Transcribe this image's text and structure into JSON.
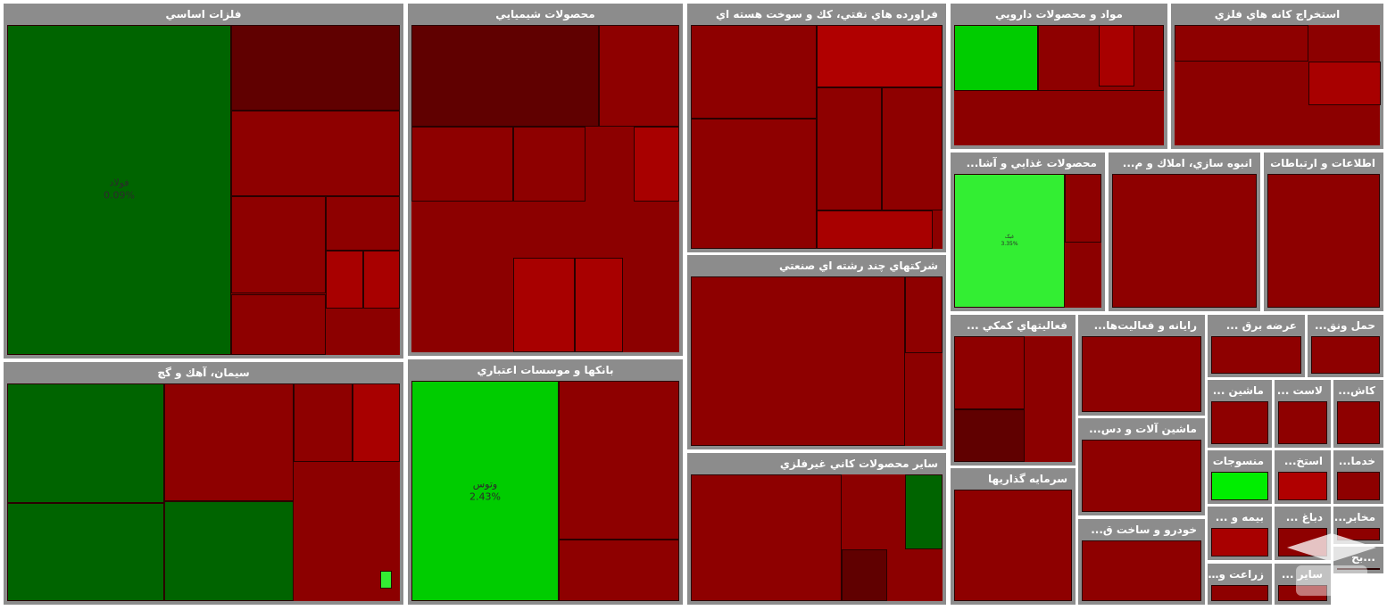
{
  "chart_data": {
    "type": "treemap",
    "title": "",
    "sectors": [
      {
        "name": "فلزات اساسي",
        "label": "فلزات اساسي",
        "tiles": [
          {
            "name": "فولاد",
            "value": "0.09%",
            "color": "#006400"
          },
          {
            "name": "",
            "value": "",
            "color": "#600000"
          },
          {
            "name": "",
            "value": "",
            "color": "#8e0000"
          },
          {
            "name": "",
            "value": "",
            "color": "#8e0000"
          },
          {
            "name": "",
            "value": "",
            "color": "#8e0000"
          },
          {
            "name": "",
            "value": "",
            "color": "#8e0000"
          },
          {
            "name": "",
            "value": "",
            "color": "#a80000"
          },
          {
            "name": "",
            "value": "",
            "color": "#a80000"
          }
        ]
      },
      {
        "name": "سيمان، آهك و گچ",
        "label": "سيمان، آهك و گچ",
        "tiles": [
          {
            "name": "",
            "value": "",
            "color": "#006400"
          },
          {
            "name": "",
            "value": "",
            "color": "#006400"
          },
          {
            "name": "",
            "value": "",
            "color": "#006400"
          },
          {
            "name": "",
            "value": "",
            "color": "#8e0000"
          },
          {
            "name": "",
            "value": "",
            "color": "#8e0000"
          },
          {
            "name": "",
            "value": "",
            "color": "#a80000"
          },
          {
            "name": "",
            "value": "",
            "color": "#33ee33"
          }
        ]
      },
      {
        "name": "محصولات شيميايي",
        "label": "محصولات شيميايي",
        "tiles": [
          {
            "name": "",
            "value": "",
            "color": "#600000"
          },
          {
            "name": "",
            "value": "",
            "color": "#8e0000"
          },
          {
            "name": "",
            "value": "",
            "color": "#8e0000"
          },
          {
            "name": "",
            "value": "",
            "color": "#8e0000"
          },
          {
            "name": "",
            "value": "",
            "color": "#a80000"
          },
          {
            "name": "",
            "value": "",
            "color": "#a80000"
          },
          {
            "name": "",
            "value": "",
            "color": "#a80000"
          }
        ]
      },
      {
        "name": "بانكها و موسسات اعتباري",
        "label": "بانكها و موسسات اعتباري",
        "tiles": [
          {
            "name": "وتوس",
            "value": "2.43%",
            "color": "#00cc00"
          },
          {
            "name": "",
            "value": "",
            "color": "#8e0000"
          },
          {
            "name": "",
            "value": "",
            "color": "#8e0000"
          }
        ]
      },
      {
        "name": "فراورده هاي نفتي، كك و سوخت هسته اي",
        "label": "فراورده هاي نفتي، كك و سوخت هسته اي",
        "tiles": [
          {
            "name": "",
            "value": "",
            "color": "#8e0000"
          },
          {
            "name": "",
            "value": "",
            "color": "#8e0000"
          },
          {
            "name": "",
            "value": "",
            "color": "#b00000"
          },
          {
            "name": "",
            "value": "",
            "color": "#8e0000"
          },
          {
            "name": "",
            "value": "",
            "color": "#8e0000"
          },
          {
            "name": "",
            "value": "",
            "color": "#a80000"
          }
        ]
      },
      {
        "name": "شركتهاي چند رشته اي صنعتي",
        "label": "شركتهاي چند رشته اي صنعتي",
        "tiles": [
          {
            "name": "",
            "value": "",
            "color": "#8e0000"
          },
          {
            "name": "",
            "value": "",
            "color": "#8e0000"
          }
        ]
      },
      {
        "name": "ساير محصولات كاني غيرفلزي",
        "label": "ساير محصولات كاني غيرفلزي",
        "tiles": [
          {
            "name": "",
            "value": "",
            "color": "#8e0000"
          },
          {
            "name": "",
            "value": "",
            "color": "#006400"
          },
          {
            "name": "",
            "value": "",
            "color": "#600000"
          }
        ]
      },
      {
        "name": "مواد و محصولات دارويي",
        "label": "مواد و محصولات دارويي",
        "tiles": [
          {
            "name": "",
            "value": "",
            "color": "#00cc00"
          },
          {
            "name": "",
            "value": "",
            "color": "#8e0000"
          },
          {
            "name": "",
            "value": "",
            "color": "#a80000"
          }
        ]
      },
      {
        "name": "استخراج كانه هاي فلزي",
        "label": "استخراج كانه هاي فلزي",
        "tiles": [
          {
            "name": "",
            "value": "",
            "color": "#8e0000"
          },
          {
            "name": "",
            "value": "",
            "color": "#a80000"
          }
        ]
      },
      {
        "name": "محصولات غذايي و آشا",
        "label": "محصولات غذايي و آشا...",
        "tiles": [
          {
            "name": "غبک",
            "value": "3.35%",
            "color": "#33ee33"
          },
          {
            "name": "",
            "value": "",
            "color": "#8e0000"
          }
        ]
      },
      {
        "name": "انبوه سازي، املاك و م",
        "label": "انبوه سازي، املاك و م...",
        "tiles": [
          {
            "name": "",
            "value": "",
            "color": "#8e0000"
          }
        ]
      },
      {
        "name": "اطلاعات و ارتباطات",
        "label": "اطلاعات و ارتباطات",
        "tiles": [
          {
            "name": "",
            "value": "",
            "color": "#8e0000"
          }
        ]
      },
      {
        "name": "فعاليتهاي كمكي",
        "label": "فعاليتهاي كمكي ...",
        "tiles": [
          {
            "name": "",
            "value": "",
            "color": "#8e0000"
          },
          {
            "name": "",
            "value": "",
            "color": "#600000"
          }
        ]
      },
      {
        "name": "رايانه و فعاليت‌ها",
        "label": "رايانه و فعاليت‌ها...",
        "tiles": [
          {
            "name": "",
            "value": "",
            "color": "#8e0000"
          }
        ]
      },
      {
        "name": "عرضه برق",
        "label": "عرضه برق ...",
        "tiles": [
          {
            "name": "",
            "value": "",
            "color": "#8e0000"
          }
        ]
      },
      {
        "name": "حمل ونق",
        "label": "حمل ونق...",
        "tiles": [
          {
            "name": "",
            "value": "",
            "color": "#8e0000"
          }
        ]
      },
      {
        "name": "ماشين",
        "label": "ماشين ...",
        "tiles": [
          {
            "name": "",
            "value": "",
            "color": "#8e0000"
          }
        ]
      },
      {
        "name": "لاست",
        "label": "لاست ...",
        "tiles": [
          {
            "name": "",
            "value": "",
            "color": "#8e0000"
          }
        ]
      },
      {
        "name": "كاش",
        "label": "كاش...",
        "tiles": [
          {
            "name": "",
            "value": "",
            "color": "#8e0000"
          }
        ]
      },
      {
        "name": "ماشين آلات و دس",
        "label": "ماشين آلات و دس...",
        "tiles": [
          {
            "name": "",
            "value": "",
            "color": "#8e0000"
          }
        ]
      },
      {
        "name": "منسوجات",
        "label": "منسوجات",
        "tiles": [
          {
            "name": "",
            "value": "",
            "color": "#00ee00"
          }
        ]
      },
      {
        "name": "استخ",
        "label": "استخ...",
        "tiles": [
          {
            "name": "",
            "value": "",
            "color": "#b00000"
          }
        ]
      },
      {
        "name": "خدما",
        "label": "خدما...",
        "tiles": [
          {
            "name": "",
            "value": "",
            "color": "#8e0000"
          }
        ]
      },
      {
        "name": "سرمايه گذاريها",
        "label": "سرمايه گذاريها",
        "tiles": [
          {
            "name": "",
            "value": "",
            "color": "#8e0000"
          }
        ]
      },
      {
        "name": "خودرو و ساخت ق",
        "label": "خودرو و ساخت ق...",
        "tiles": [
          {
            "name": "",
            "value": "",
            "color": "#8e0000"
          }
        ]
      },
      {
        "name": "بيمه و",
        "label": "بيمه و ...",
        "tiles": [
          {
            "name": "",
            "value": "",
            "color": "#a80000"
          }
        ]
      },
      {
        "name": "دباغ",
        "label": "دباغ ...",
        "tiles": [
          {
            "name": "",
            "value": "",
            "color": "#8e0000"
          }
        ]
      },
      {
        "name": "مخابر",
        "label": "مخابر...",
        "tiles": [
          {
            "name": "",
            "value": "",
            "color": "#8e0000"
          }
        ]
      },
      {
        "name": "زراعت و",
        "label": "زراعت و ...",
        "tiles": [
          {
            "name": "",
            "value": "",
            "color": "#8e0000"
          }
        ]
      },
      {
        "name": "ساير",
        "label": "ساير ...",
        "tiles": [
          {
            "name": "",
            "value": "",
            "color": "#8e0000"
          }
        ]
      },
      {
        "name": "بح",
        "label": "...بح",
        "tiles": [
          {
            "name": "",
            "value": "",
            "color": "#8e0000"
          }
        ]
      }
    ]
  }
}
